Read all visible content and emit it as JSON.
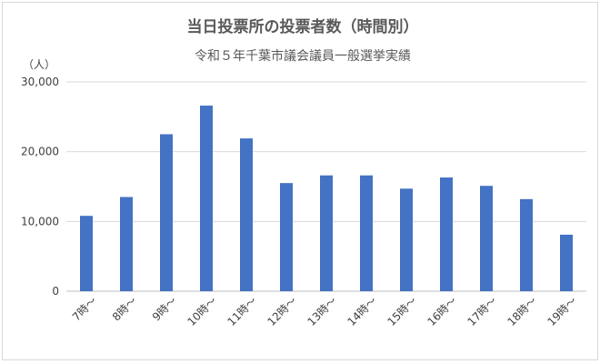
{
  "chart_data": {
    "type": "bar",
    "title": "当日投票所の投票者数（時間別）",
    "subtitle": "令和５年千葉市議会議員一般選挙実績",
    "ylabel": "（人）",
    "xlabel": "",
    "ylim": [
      0,
      30000
    ],
    "yticks": [
      0,
      10000,
      20000,
      30000
    ],
    "ytick_labels": [
      "0",
      "10,000",
      "20,000",
      "30,000"
    ],
    "grid": true,
    "legend": "none",
    "bar_color": "#4472c4",
    "categories": [
      "7時～",
      "8時～",
      "9時～",
      "10時～",
      "11時～",
      "12時～",
      "13時～",
      "14時～",
      "15時～",
      "16時～",
      "17時～",
      "18時～",
      "19時～"
    ],
    "values": [
      10800,
      13500,
      22500,
      26600,
      21900,
      15500,
      16600,
      16600,
      14700,
      16300,
      15100,
      13200,
      8100
    ]
  }
}
